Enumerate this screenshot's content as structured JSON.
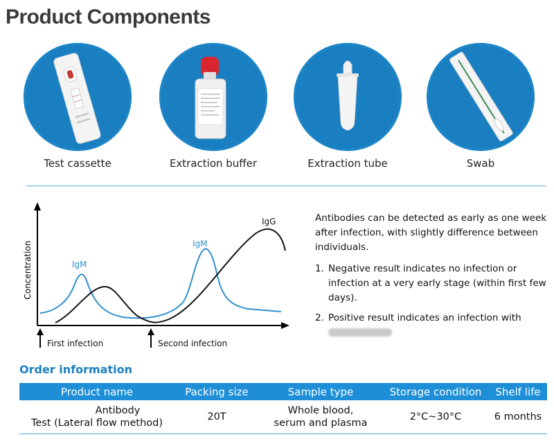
{
  "page": {
    "title": "Product Components"
  },
  "components": [
    {
      "label": "Test cassette",
      "icon": "test-cassette-icon"
    },
    {
      "label": "Extraction buffer",
      "icon": "extraction-buffer-icon"
    },
    {
      "label": "Extraction tube",
      "icon": "extraction-tube-icon"
    },
    {
      "label": "Swab",
      "icon": "swab-icon"
    }
  ],
  "chart_data": {
    "type": "line",
    "ylabel": "Concentration",
    "series": [
      {
        "name": "IgM",
        "color": "#2e8fcc",
        "labels": [
          "IgM",
          "IgM"
        ]
      },
      {
        "name": "IgG",
        "color": "#111111",
        "labels": [
          "IgG"
        ]
      }
    ],
    "annotations": [
      "First infection",
      "Second infection"
    ],
    "grid": false
  },
  "info": {
    "intro": "Antibodies can be detected as early as one week after infection, with slightly difference between individuals.",
    "items": [
      {
        "num": "1.",
        "text": "Negative result indicates no infection or infection at a very early stage (within first few days)."
      },
      {
        "num": "2.",
        "text": "Positive result indicates an infection with"
      }
    ]
  },
  "order": {
    "title": "Order information",
    "headers": [
      "Product name",
      "Packing size",
      "Sample type",
      "Storage condition",
      "Shelf life"
    ],
    "row": {
      "product_name_line1": "Antibody",
      "product_name_line2": "Test (Lateral flow method)",
      "packing_size": "20T",
      "sample_type_line1": "Whole blood,",
      "sample_type_line2": "serum and plasma",
      "storage": "2°C~30°C",
      "shelf_life": "6 months"
    }
  },
  "colors": {
    "accent": "#1a7fc1",
    "header_bg": "#1e8fd6",
    "igm": "#2e8fcc",
    "igg": "#111111"
  }
}
